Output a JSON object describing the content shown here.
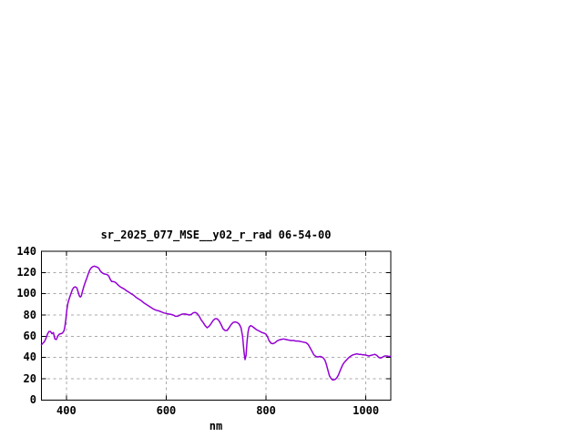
{
  "page": {
    "background": "#ffffff"
  },
  "chart_data": {
    "type": "line",
    "title": "sr_2025_077_MSE__y02_r_rad 06-54-00",
    "xlabel": "nm",
    "ylabel": "",
    "xlim": [
      350,
      1050
    ],
    "ylim": [
      0,
      140
    ],
    "xticks": [
      400,
      600,
      800,
      1000
    ],
    "yticks": [
      0,
      20,
      40,
      60,
      80,
      100,
      120,
      140
    ],
    "grid": true,
    "legend": "none",
    "colors": {
      "line": "#9400d3",
      "grid": "#a8a8a8",
      "border": "#000000",
      "text": "#000000"
    },
    "series": [
      {
        "color": "#9400d3",
        "points": [
          [
            350,
            52
          ],
          [
            353,
            53.5
          ],
          [
            356,
            55
          ],
          [
            359,
            58
          ],
          [
            362,
            62
          ],
          [
            365,
            64.5
          ],
          [
            368,
            64.5
          ],
          [
            371,
            62.5
          ],
          [
            374,
            63.5
          ],
          [
            377,
            57.5
          ],
          [
            380,
            57
          ],
          [
            383,
            60.5
          ],
          [
            386,
            62
          ],
          [
            389,
            62.5
          ],
          [
            392,
            63
          ],
          [
            395,
            65
          ],
          [
            397,
            69
          ],
          [
            399,
            76
          ],
          [
            401,
            85
          ],
          [
            403,
            91
          ],
          [
            406,
            96
          ],
          [
            409,
            100
          ],
          [
            412,
            104
          ],
          [
            415,
            106
          ],
          [
            418,
            106.5
          ],
          [
            421,
            105.5
          ],
          [
            424,
            101
          ],
          [
            426,
            98
          ],
          [
            428,
            97
          ],
          [
            430,
            98
          ],
          [
            432,
            102
          ],
          [
            435,
            107
          ],
          [
            438,
            111
          ],
          [
            441,
            115
          ],
          [
            444,
            119
          ],
          [
            447,
            122.5
          ],
          [
            450,
            124.5
          ],
          [
            453,
            125.5
          ],
          [
            456,
            126
          ],
          [
            459,
            125.5
          ],
          [
            462,
            125
          ],
          [
            465,
            124
          ],
          [
            468,
            121.5
          ],
          [
            471,
            120
          ],
          [
            474,
            119
          ],
          [
            478,
            118.5
          ],
          [
            482,
            118
          ],
          [
            485,
            116.5
          ],
          [
            488,
            113.5
          ],
          [
            491,
            111.5
          ],
          [
            494,
            111.5
          ],
          [
            497,
            111
          ],
          [
            500,
            110
          ],
          [
            504,
            108
          ],
          [
            508,
            106.5
          ],
          [
            512,
            105.5
          ],
          [
            516,
            104.5
          ],
          [
            520,
            103
          ],
          [
            525,
            101.5
          ],
          [
            530,
            100
          ],
          [
            535,
            98.5
          ],
          [
            540,
            96.5
          ],
          [
            545,
            95
          ],
          [
            550,
            93.5
          ],
          [
            555,
            91.5
          ],
          [
            560,
            90
          ],
          [
            565,
            88.5
          ],
          [
            570,
            87
          ],
          [
            575,
            85.5
          ],
          [
            580,
            84.5
          ],
          [
            585,
            84
          ],
          [
            590,
            83
          ],
          [
            595,
            82
          ],
          [
            600,
            81.5
          ],
          [
            605,
            81
          ],
          [
            610,
            80.5
          ],
          [
            614,
            80
          ],
          [
            618,
            79
          ],
          [
            622,
            78.8
          ],
          [
            626,
            79.5
          ],
          [
            630,
            80.5
          ],
          [
            634,
            81
          ],
          [
            638,
            81
          ],
          [
            642,
            80.5
          ],
          [
            646,
            80
          ],
          [
            650,
            80.5
          ],
          [
            654,
            82
          ],
          [
            658,
            82.5
          ],
          [
            662,
            81.5
          ],
          [
            666,
            79
          ],
          [
            670,
            75.5
          ],
          [
            674,
            73
          ],
          [
            678,
            70
          ],
          [
            682,
            68
          ],
          [
            686,
            69.5
          ],
          [
            690,
            72
          ],
          [
            694,
            75
          ],
          [
            698,
            76.5
          ],
          [
            702,
            76.5
          ],
          [
            706,
            74.5
          ],
          [
            710,
            71
          ],
          [
            714,
            67
          ],
          [
            718,
            65.5
          ],
          [
            722,
            65.5
          ],
          [
            726,
            68
          ],
          [
            730,
            71
          ],
          [
            734,
            73
          ],
          [
            738,
            73.5
          ],
          [
            742,
            73
          ],
          [
            746,
            71.5
          ],
          [
            750,
            68
          ],
          [
            753,
            60
          ],
          [
            756,
            45
          ],
          [
            758,
            38
          ],
          [
            760,
            42
          ],
          [
            762,
            55
          ],
          [
            764,
            64
          ],
          [
            766,
            68.5
          ],
          [
            769,
            70
          ],
          [
            772,
            69.5
          ],
          [
            776,
            68
          ],
          [
            780,
            66.5
          ],
          [
            784,
            65.5
          ],
          [
            788,
            64.5
          ],
          [
            792,
            63.5
          ],
          [
            796,
            63
          ],
          [
            800,
            62
          ],
          [
            803,
            59.5
          ],
          [
            806,
            56
          ],
          [
            810,
            53.5
          ],
          [
            814,
            53
          ],
          [
            818,
            54
          ],
          [
            822,
            55.5
          ],
          [
            826,
            56.5
          ],
          [
            830,
            57
          ],
          [
            835,
            57.5
          ],
          [
            840,
            57
          ],
          [
            845,
            56.5
          ],
          [
            850,
            56
          ],
          [
            855,
            56
          ],
          [
            860,
            55.5
          ],
          [
            865,
            55.5
          ],
          [
            870,
            55
          ],
          [
            875,
            54.5
          ],
          [
            880,
            54
          ],
          [
            884,
            52.5
          ],
          [
            888,
            49.5
          ],
          [
            892,
            46
          ],
          [
            896,
            42.5
          ],
          [
            900,
            41
          ],
          [
            904,
            40.5
          ],
          [
            908,
            41
          ],
          [
            912,
            40.5
          ],
          [
            915,
            39.5
          ],
          [
            918,
            37.5
          ],
          [
            921,
            33.5
          ],
          [
            924,
            28
          ],
          [
            927,
            23
          ],
          [
            930,
            20.5
          ],
          [
            933,
            19
          ],
          [
            936,
            19
          ],
          [
            939,
            19.5
          ],
          [
            942,
            21
          ],
          [
            945,
            23.5
          ],
          [
            948,
            27
          ],
          [
            951,
            30.5
          ],
          [
            954,
            33.5
          ],
          [
            957,
            35.5
          ],
          [
            960,
            37
          ],
          [
            963,
            38.5
          ],
          [
            966,
            40
          ],
          [
            970,
            41.5
          ],
          [
            974,
            42.5
          ],
          [
            978,
            43
          ],
          [
            982,
            43.5
          ],
          [
            986,
            43
          ],
          [
            990,
            43
          ],
          [
            994,
            42.5
          ],
          [
            998,
            42.5
          ],
          [
            1002,
            42
          ],
          [
            1006,
            41.5
          ],
          [
            1010,
            42
          ],
          [
            1014,
            42.5
          ],
          [
            1018,
            43
          ],
          [
            1022,
            42
          ],
          [
            1026,
            40
          ],
          [
            1030,
            39.5
          ],
          [
            1034,
            40.5
          ],
          [
            1038,
            41.5
          ],
          [
            1042,
            41.5
          ],
          [
            1046,
            41
          ],
          [
            1050,
            41
          ]
        ]
      }
    ]
  }
}
